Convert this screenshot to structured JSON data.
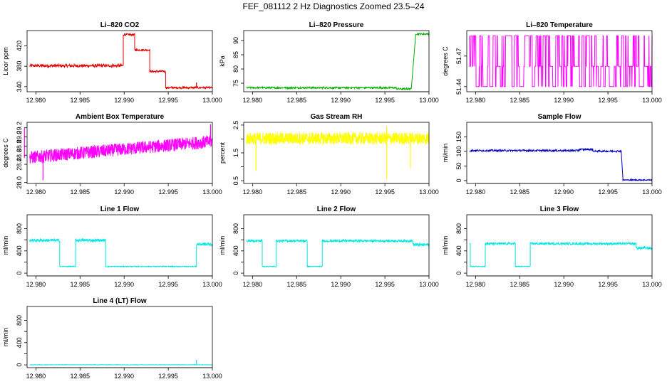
{
  "figure": {
    "title": "FEF_081112  2 Hz Diagnostics Zoomed 23.5–24"
  },
  "chart_data": [
    {
      "type": "line",
      "title": "Li–820 CO2",
      "ylabel": "Licor ppm",
      "color": "#e00000",
      "xlim": [
        12.979,
        13.0
      ],
      "ylim": [
        330,
        450
      ],
      "xticks": [
        12.98,
        12.985,
        12.99,
        12.995,
        13.0
      ],
      "xtick_labels": [
        "12.980",
        "12.985",
        "12.990",
        "12.995",
        "13.000"
      ],
      "yticks": [
        340,
        380,
        420
      ],
      "ytick_labels": [
        "340",
        "380",
        "420"
      ],
      "segments": [
        [
          12.9793,
          12.9899,
          381,
          3
        ],
        [
          12.9899,
          12.9912,
          442,
          2
        ],
        [
          12.9912,
          12.9929,
          412,
          2
        ],
        [
          12.9929,
          12.9947,
          370,
          2
        ],
        [
          12.9947,
          13.0,
          338,
          2
        ]
      ],
      "spikes": [
        [
          12.9982,
          348
        ]
      ]
    },
    {
      "type": "line",
      "title": "Li–820 Pressure",
      "ylabel": "kPa",
      "color": "#00b000",
      "xlim": [
        12.979,
        13.0
      ],
      "ylim": [
        72,
        93.5
      ],
      "xticks": [
        12.98,
        12.985,
        12.99,
        12.995,
        13.0
      ],
      "xtick_labels": [
        "12.980",
        "12.985",
        "12.990",
        "12.995",
        "13.000"
      ],
      "yticks": [
        75,
        80,
        85,
        90
      ],
      "ytick_labels": [
        "75",
        "80",
        "85",
        "90"
      ],
      "segments": [
        [
          12.9793,
          12.9963,
          73.4,
          0.3
        ],
        [
          12.9963,
          12.998,
          73.0,
          0.3
        ],
        [
          12.9985,
          13.0,
          92.3,
          0.3
        ]
      ],
      "ramps": [
        [
          12.998,
          73.0,
          12.9985,
          92.3
        ]
      ]
    },
    {
      "type": "line",
      "title": "Li–820 Temperature",
      "ylabel": "degrees C",
      "color": "#ff00ff",
      "xlim": [
        12.979,
        13.0
      ],
      "ylim": [
        51.435,
        51.495
      ],
      "xticks": [
        12.98,
        12.985,
        12.99,
        12.995,
        13.0
      ],
      "xtick_labels": [
        "12.980",
        "12.985",
        "12.990",
        "12.995",
        "13.000"
      ],
      "yticks": [
        51.44,
        51.47
      ],
      "ytick_labels": [
        "51.44",
        "51.47"
      ],
      "levels": [
        51.44,
        51.46,
        51.49
      ],
      "switch_rate": 0.35
    },
    {
      "type": "line",
      "title": "Ambient Box Temperature",
      "ylabel": "degrees C",
      "color": "#ff00ff",
      "xlim": [
        12.979,
        13.0
      ],
      "ylim": [
        27.98,
        29.32
      ],
      "xticks": [
        12.98,
        12.985,
        12.99,
        12.995,
        13.0
      ],
      "xtick_labels": [
        "12.980",
        "12.985",
        "12.990",
        "12.995",
        "13.000"
      ],
      "yticks": [
        28.0,
        28.4,
        28.6,
        28.8,
        29.0,
        29.2
      ],
      "ytick_labels": [
        "28.0",
        "28.4",
        "28.6",
        "28.8",
        "29.0",
        "29.2"
      ],
      "trend": [
        [
          12.9793,
          28.55
        ],
        [
          13.0,
          28.9
        ]
      ],
      "noise": 0.14,
      "spikes": [
        [
          12.9808,
          28.05
        ],
        [
          12.9787,
          29.2
        ],
        [
          12.9998,
          29.28
        ]
      ]
    },
    {
      "type": "line",
      "title": "Gas Stream RH",
      "ylabel": "percent",
      "color": "#ffff00",
      "xlim": [
        12.979,
        13.0
      ],
      "ylim": [
        0.4,
        2.6
      ],
      "xticks": [
        12.98,
        12.985,
        12.99,
        12.995,
        13.0
      ],
      "xtick_labels": [
        "12.980",
        "12.985",
        "12.990",
        "12.995",
        "13.000"
      ],
      "yticks": [
        0.5,
        1.0,
        1.5,
        2.0,
        2.5
      ],
      "ytick_labels": [
        "0.5",
        "1.5",
        "2.5"
      ],
      "trend": [
        [
          12.9793,
          2.02
        ],
        [
          13.0,
          2.02
        ]
      ],
      "noise": 0.22,
      "spikes": [
        [
          12.9804,
          0.85
        ],
        [
          12.9952,
          0.55
        ],
        [
          12.9979,
          0.95
        ],
        [
          12.9952,
          2.45
        ]
      ]
    },
    {
      "type": "line",
      "title": "Sample Flow",
      "ylabel": "ml/min",
      "color": "#0000c0",
      "xlim": [
        12.979,
        13.0
      ],
      "ylim": [
        -10,
        200
      ],
      "xticks": [
        12.98,
        12.985,
        12.99,
        12.995,
        13.0
      ],
      "xtick_labels": [
        "12.980",
        "12.985",
        "12.990",
        "12.995",
        "13.000"
      ],
      "yticks": [
        0,
        50,
        100,
        150
      ],
      "ytick_labels": [
        "0",
        "50",
        "100",
        "150"
      ],
      "segments": [
        [
          12.9793,
          12.9917,
          103,
          3
        ],
        [
          12.9917,
          12.9933,
          107,
          3
        ],
        [
          12.9933,
          12.9965,
          101,
          3
        ],
        [
          12.9967,
          13.0,
          2,
          2
        ]
      ],
      "ramps": [
        [
          12.9965,
          101,
          12.9967,
          8
        ]
      ]
    },
    {
      "type": "line",
      "title": "Line 1 Flow",
      "ylabel": "ml/min",
      "color": "#00e5e5",
      "xlim": [
        12.979,
        13.0
      ],
      "ylim": [
        -50,
        1050
      ],
      "xticks": [
        12.98,
        12.985,
        12.99,
        12.995,
        13.0
      ],
      "xtick_labels": [
        "12.980",
        "12.985",
        "12.990",
        "12.995",
        "13.000"
      ],
      "yticks": [
        0,
        200,
        400,
        600,
        800
      ],
      "ytick_labels": [
        "0",
        "400",
        "800"
      ],
      "segments": [
        [
          12.9793,
          12.9827,
          590,
          25
        ],
        [
          12.9827,
          12.9845,
          120,
          8
        ],
        [
          12.9845,
          12.9879,
          590,
          25
        ],
        [
          12.9879,
          12.9982,
          120,
          8
        ],
        [
          12.9982,
          13.0,
          520,
          30
        ]
      ]
    },
    {
      "type": "line",
      "title": "Line 2 Flow",
      "ylabel": "ml/min",
      "color": "#00e5e5",
      "xlim": [
        12.979,
        13.0
      ],
      "ylim": [
        -50,
        1050
      ],
      "xticks": [
        12.98,
        12.985,
        12.99,
        12.995,
        13.0
      ],
      "xtick_labels": [
        "12.980",
        "12.985",
        "12.990",
        "12.995",
        "13.000"
      ],
      "yticks": [
        0,
        200,
        400,
        600,
        800
      ],
      "ytick_labels": [
        "0",
        "400",
        "800"
      ],
      "segments": [
        [
          12.9793,
          12.9811,
          580,
          20
        ],
        [
          12.9811,
          12.9827,
          120,
          8
        ],
        [
          12.9827,
          12.9862,
          580,
          20
        ],
        [
          12.9862,
          12.9879,
          120,
          8
        ],
        [
          12.9879,
          12.9982,
          580,
          20
        ],
        [
          12.9982,
          13.0,
          510,
          30
        ]
      ]
    },
    {
      "type": "line",
      "title": "Line 3 Flow",
      "ylabel": "ml/min",
      "color": "#00e5e5",
      "xlim": [
        12.979,
        13.0
      ],
      "ylim": [
        -50,
        1050
      ],
      "xticks": [
        12.98,
        12.985,
        12.99,
        12.995,
        13.0
      ],
      "xtick_labels": [
        "12.980",
        "12.985",
        "12.990",
        "12.995",
        "13.000"
      ],
      "yticks": [
        0,
        200,
        400,
        600,
        800
      ],
      "ytick_labels": [
        "0",
        "400",
        "800"
      ],
      "segments": [
        [
          12.9793,
          12.9794,
          530,
          5
        ],
        [
          12.9794,
          12.9811,
          120,
          8
        ],
        [
          12.9811,
          12.9845,
          530,
          20
        ],
        [
          12.9845,
          12.9862,
          120,
          8
        ],
        [
          12.9862,
          12.9982,
          530,
          20
        ],
        [
          12.9982,
          13.0,
          450,
          25
        ]
      ]
    },
    {
      "type": "line",
      "title": "Line 4 (LT) Flow",
      "ylabel": "ml/min",
      "color": "#00e5e5",
      "xlim": [
        12.979,
        13.0
      ],
      "ylim": [
        -50,
        1050
      ],
      "xticks": [
        12.98,
        12.985,
        12.99,
        12.995,
        13.0
      ],
      "xtick_labels": [
        "12.980",
        "12.985",
        "12.990",
        "12.995",
        "13.000"
      ],
      "yticks": [
        0,
        200,
        400,
        600,
        800
      ],
      "ytick_labels": [
        "0",
        "400",
        "800"
      ],
      "segments": [
        [
          12.9793,
          13.0,
          2,
          3
        ]
      ],
      "spikes": [
        [
          12.9982,
          90
        ]
      ]
    }
  ]
}
